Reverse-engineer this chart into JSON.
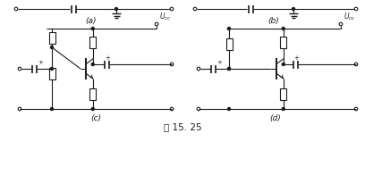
{
  "fig_label": "图 15. 25",
  "background_color": "#ffffff",
  "line_color": "#1a1a1a",
  "figsize": [
    4.08,
    2.15
  ],
  "dpi": 100,
  "subfig_labels": [
    "(a)",
    "(b)",
    "(c)",
    "(d)"
  ]
}
